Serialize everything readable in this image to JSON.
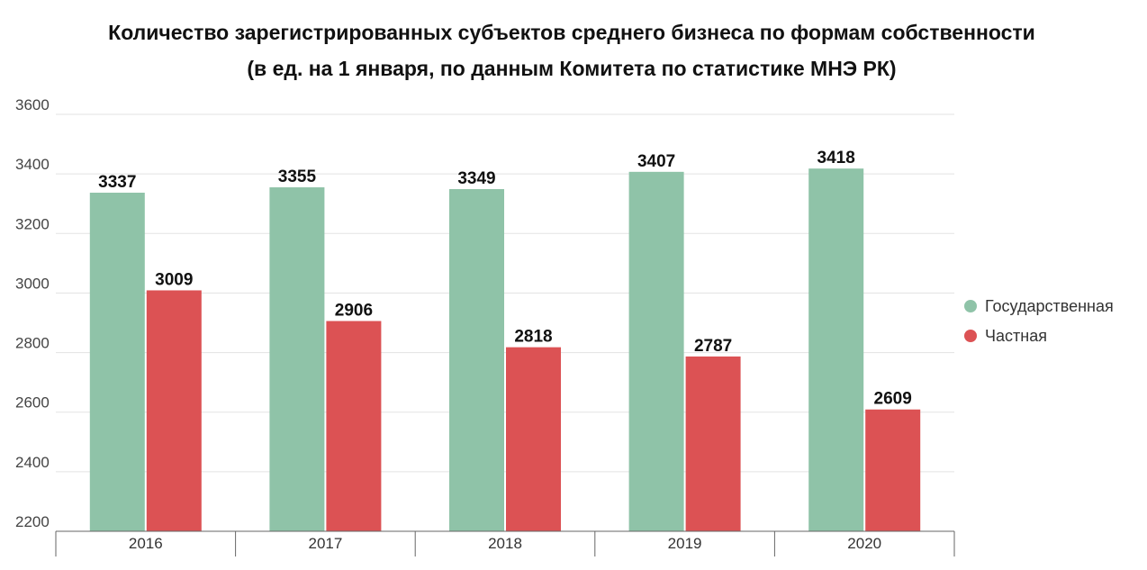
{
  "chart_data": {
    "type": "bar",
    "title": "Количество зарегистрированных субъектов среднего бизнеса по формам собственности",
    "subtitle": "(в ед. на 1 января, по данным Комитета по статистике МНЭ РК)",
    "categories": [
      "2016",
      "2017",
      "2018",
      "2019",
      "2020"
    ],
    "series": [
      {
        "name": "Государственная",
        "color": "#8fc3a8",
        "values": [
          3337,
          3355,
          3349,
          3407,
          3418
        ]
      },
      {
        "name": "Частная",
        "color": "#dc5254",
        "values": [
          3009,
          2906,
          2818,
          2787,
          2609
        ]
      }
    ],
    "ylim": [
      2200,
      3600
    ],
    "yticks": [
      "2200",
      "2400",
      "2600",
      "2800",
      "3000",
      "3200",
      "3400",
      "3600"
    ],
    "grid": true,
    "data_labels": true,
    "legend_position": "right"
  }
}
